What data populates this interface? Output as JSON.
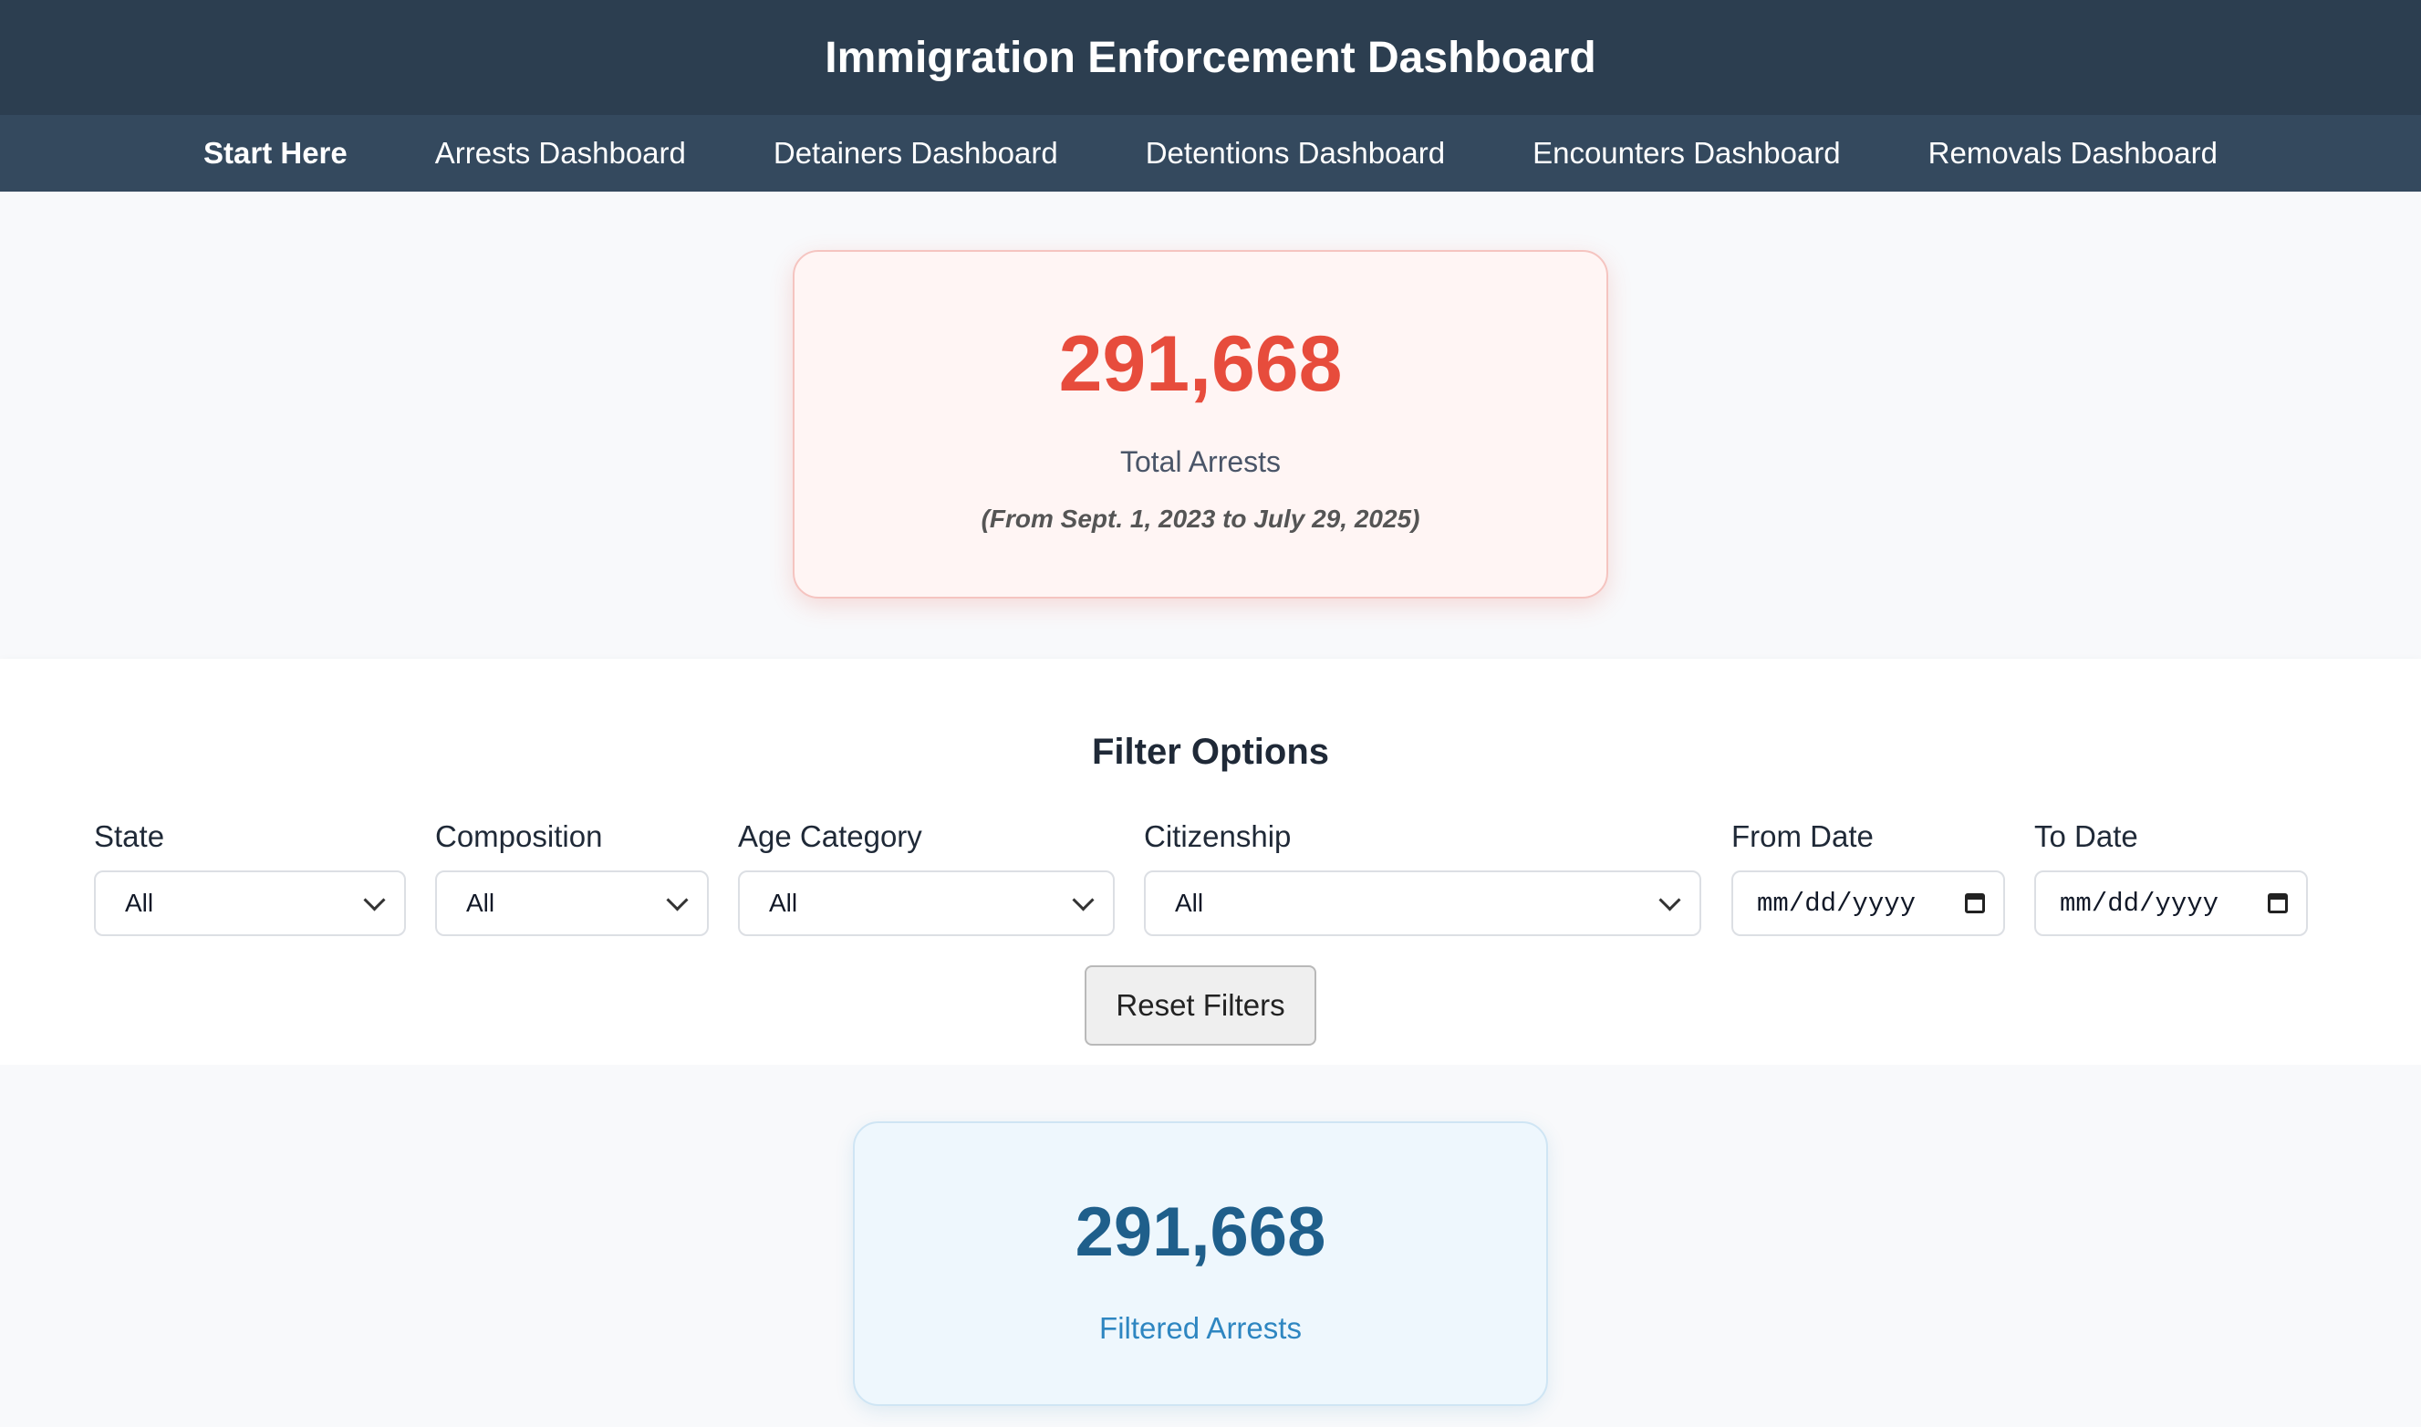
{
  "header": {
    "title": "Immigration Enforcement Dashboard"
  },
  "nav": {
    "items": [
      {
        "label": "Start Here",
        "active": true
      },
      {
        "label": "Arrests Dashboard"
      },
      {
        "label": "Detainers Dashboard"
      },
      {
        "label": "Detentions Dashboard"
      },
      {
        "label": "Encounters Dashboard"
      },
      {
        "label": "Removals Dashboard"
      }
    ]
  },
  "summary": {
    "total_value": "291,668",
    "total_label": "Total Arrests",
    "date_range": "(From Sept. 1, 2023 to July 29, 2025)"
  },
  "filters": {
    "title": "Filter Options",
    "state": {
      "label": "State",
      "value": "All"
    },
    "composition": {
      "label": "Composition",
      "value": "All"
    },
    "age_category": {
      "label": "Age Category",
      "value": "All"
    },
    "citizenship": {
      "label": "Citizenship",
      "value": "All"
    },
    "from_date": {
      "label": "From Date",
      "placeholder": "mm/dd/yyyy"
    },
    "to_date": {
      "label": "To Date",
      "placeholder": "mm/dd/yyyy"
    },
    "reset_label": "Reset Filters"
  },
  "filtered": {
    "value": "291,668",
    "label": "Filtered Arrests"
  },
  "colors": {
    "header_bg": "#2c3e50",
    "nav_bg": "#34495e",
    "total_accent": "#e74c3c",
    "filtered_accent": "#1f5f8b"
  },
  "icons": {
    "select": "chevron-down-icon",
    "date": "calendar-icon"
  }
}
